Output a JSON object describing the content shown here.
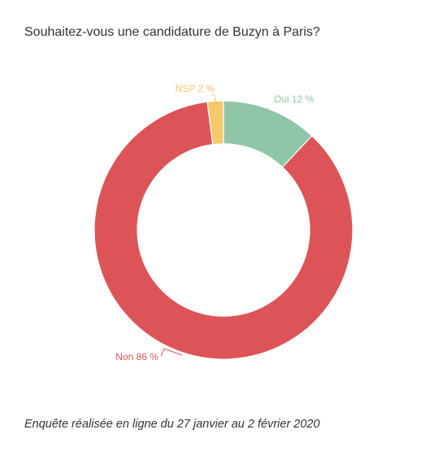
{
  "chart_data": {
    "type": "pie",
    "title": "Souhaitez-vous une candidature de Buzyn à Paris?",
    "categories": [
      "Oui",
      "Non",
      "NSP"
    ],
    "values": [
      12,
      86,
      2
    ],
    "labels": [
      "Oui 12 %",
      "Non 86 %",
      "NSP 2 %"
    ],
    "colors": [
      "#8fc6a8",
      "#dc5457",
      "#f5c86a"
    ],
    "donut": true
  },
  "footnote": "Enquête réalisée en ligne du 27 janvier au 2 février 2020"
}
